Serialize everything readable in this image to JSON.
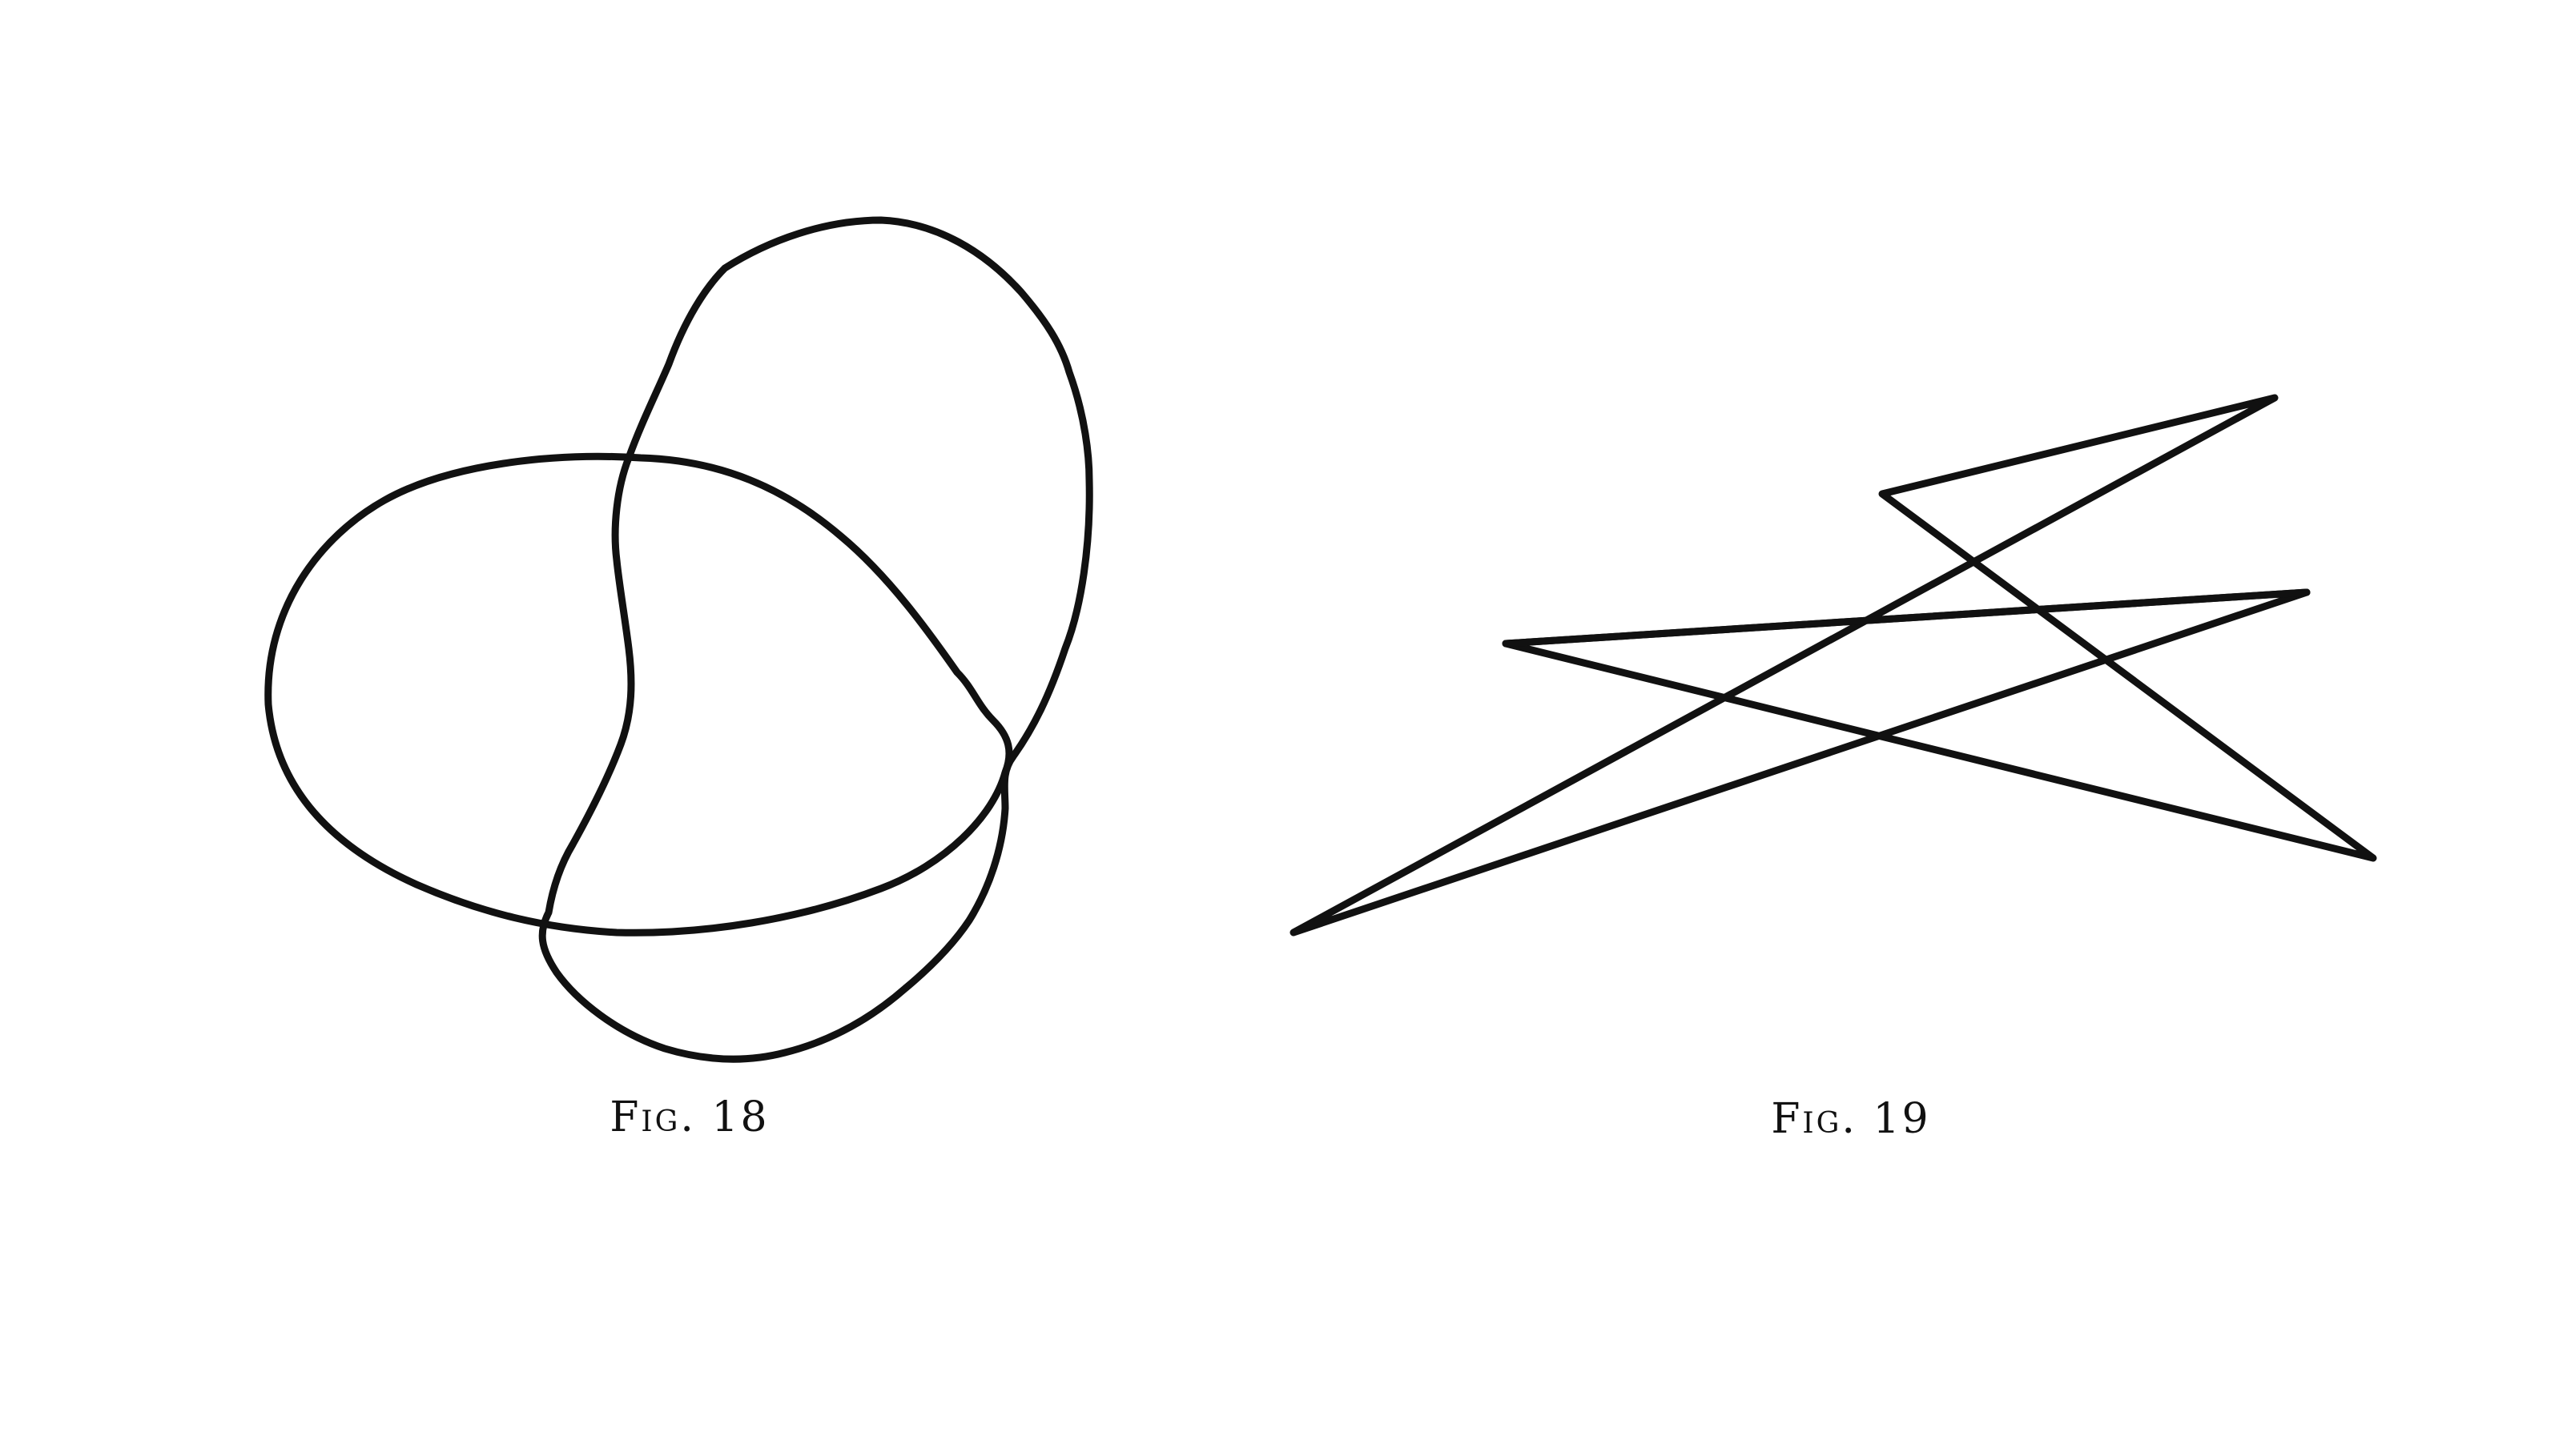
{
  "figures": [
    {
      "caption": "Fig. 18",
      "depicts": "knot"
    },
    {
      "caption": "Fig. 19",
      "depicts": "polygonal-knot"
    }
  ],
  "colors": {
    "background": "#ffffff",
    "ink": "#111111"
  }
}
